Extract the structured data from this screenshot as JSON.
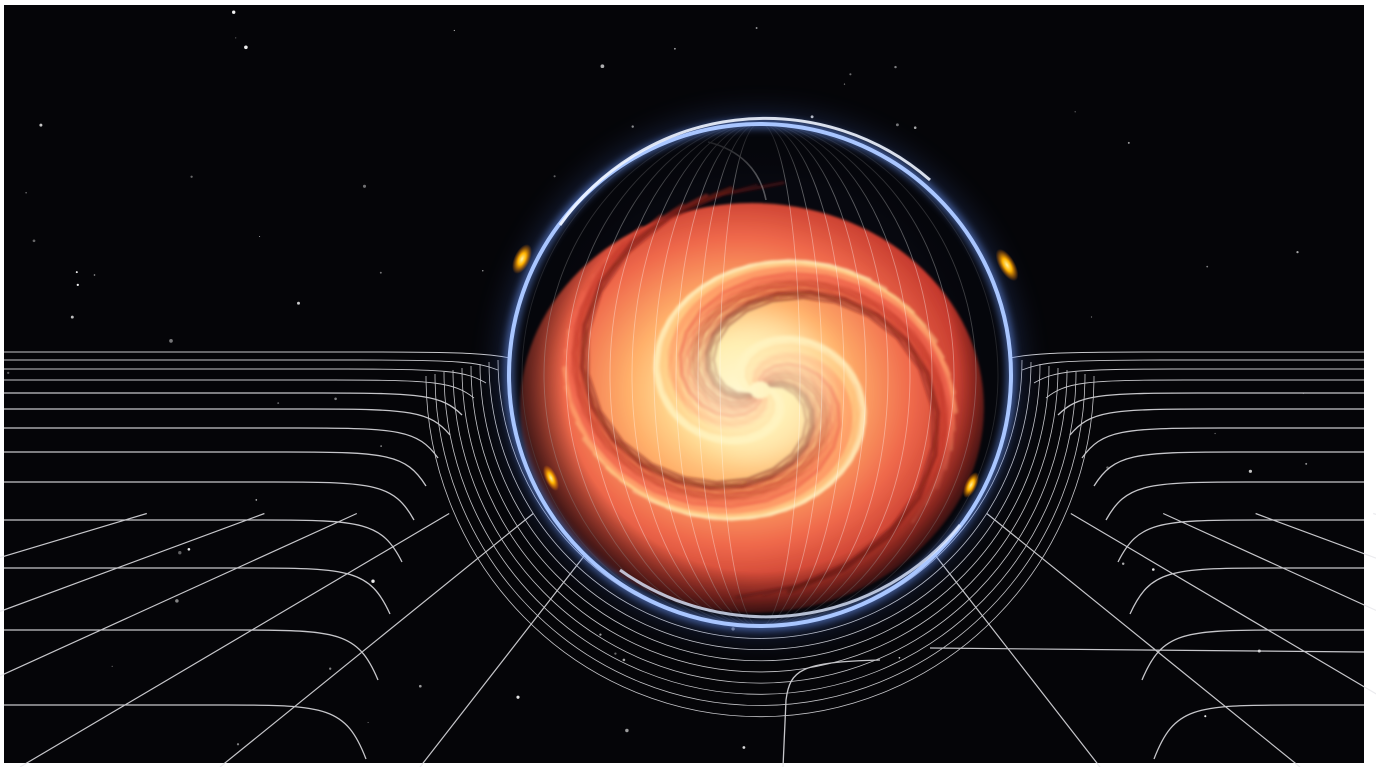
{
  "image": {
    "subject": "spacetime-grid-warped-by-glowing-sphere",
    "colors": {
      "background": "#ffffff",
      "space": "#050508",
      "grid_line": "#e8e8ec",
      "ring_outer": "#8fb4ff",
      "ring_inner": "#cfe0ff",
      "core_bright": "#fff6c8",
      "core_mid": "#ffb060",
      "core_outer": "#e8503a",
      "core_edge": "#8a1f18",
      "flare": "#ffb300",
      "star": "#ffffff"
    }
  }
}
